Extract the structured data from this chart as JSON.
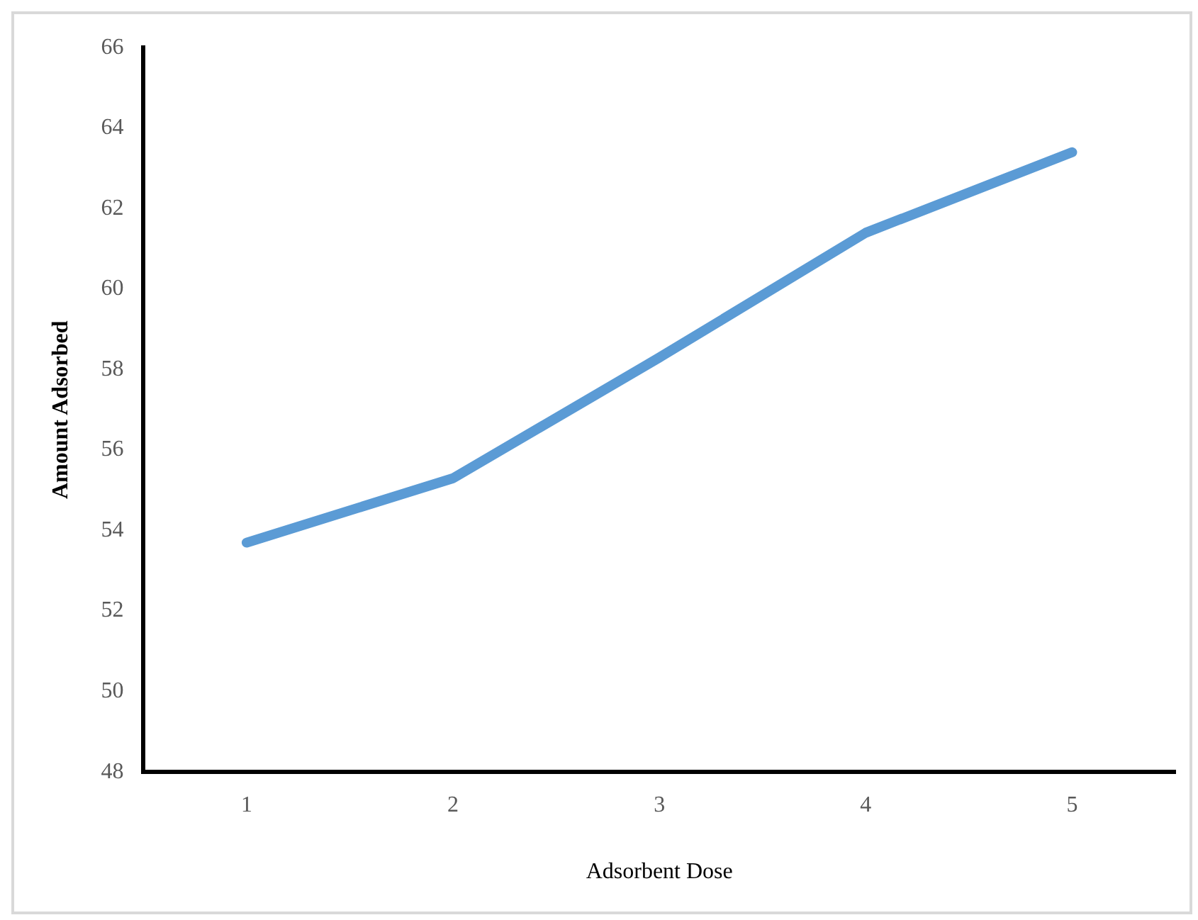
{
  "chart_data": {
    "type": "line",
    "ylabel": "Amount Adsorbed",
    "xlabel": "Adsorbent Dose",
    "categories": [
      "1",
      "2",
      "3",
      "4",
      "5"
    ],
    "series": [
      {
        "color": "#5b9bd5",
        "values": [
          53.7,
          55.3,
          58.3,
          61.4,
          63.4
        ]
      }
    ],
    "ylim": [
      48,
      66
    ],
    "yticks": [
      48,
      50,
      52,
      54,
      56,
      58,
      60,
      62,
      64,
      66
    ],
    "grid": false,
    "legend": false,
    "marker": "none"
  }
}
